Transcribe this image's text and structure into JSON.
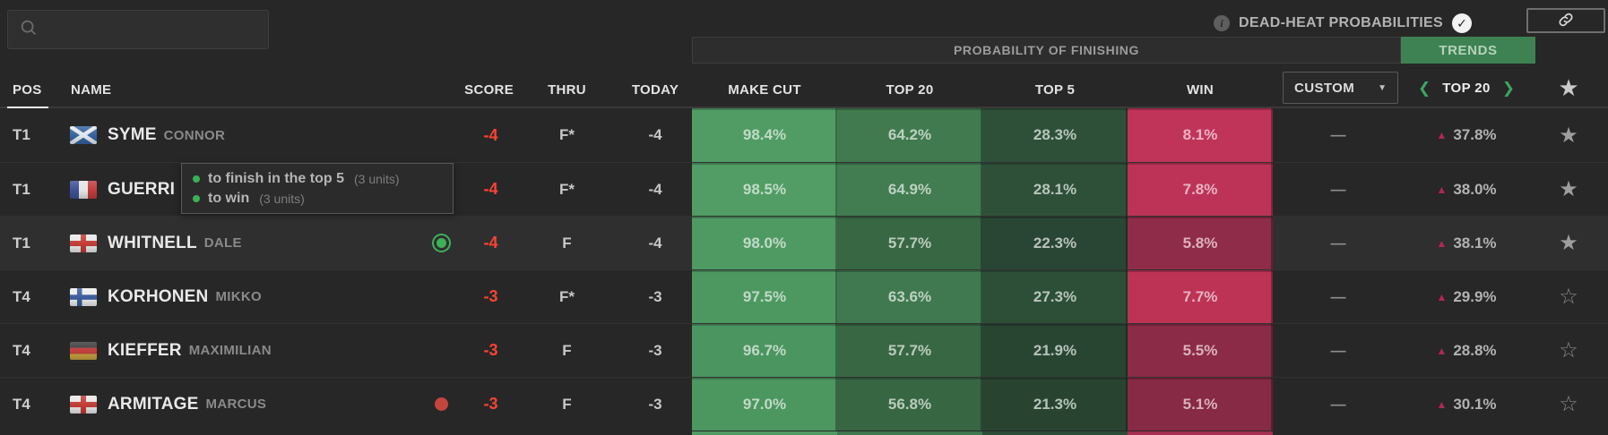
{
  "search": {
    "placeholder": ""
  },
  "topbar": {
    "info_icon": "i",
    "dead_heat_label": "DEAD-HEAT PROBABILITIES",
    "check_icon": "✓",
    "link_icon": "link-chain"
  },
  "prob_header": {
    "title": "PROBABILITY OF FINISHING",
    "trends_label": "TRENDS"
  },
  "columns": {
    "pos": "POS",
    "name": "NAME",
    "score": "SCORE",
    "thru": "THRU",
    "today": "TODAY",
    "make_cut": "MAKE CUT",
    "top20": "TOP 20",
    "top5": "TOP 5",
    "win": "WIN"
  },
  "custom_dropdown": {
    "value": "CUSTOM",
    "caret": "▼"
  },
  "trend_nav": {
    "prev": "❮",
    "label": "TOP 20",
    "next": "❯",
    "header_star": "★"
  },
  "tooltip": {
    "lines": [
      {
        "text": "to finish in the top 5",
        "units": "(3 units)"
      },
      {
        "text": "to win",
        "units": "(3 units)"
      }
    ]
  },
  "colors": {
    "trends_green": "#3e8253",
    "score_red": "#fb4334",
    "trend_triangle": "#b3255a",
    "indicator_green": "#3db158",
    "indicator_red": "#c4453c",
    "tooltip_dot_green": "#3cb054"
  },
  "players": [
    {
      "pos": "T1",
      "country": "sct",
      "last": "SYME",
      "first": "CONNOR",
      "indicator": null,
      "score": "-4",
      "thru": "F*",
      "today": "-4",
      "make_cut": {
        "v": "98.4%",
        "c": "#509c64"
      },
      "top20": {
        "v": "64.2%",
        "c": "#417a4f"
      },
      "top5": {
        "v": "28.3%",
        "c": "#2e5039"
      },
      "win": {
        "v": "8.1%",
        "c": "#c03459"
      },
      "custom": "—",
      "trend": "37.8%",
      "starred": true
    },
    {
      "pos": "T1",
      "country": "fra",
      "last": "GUERRI",
      "first": "",
      "indicator": null,
      "score": "-4",
      "thru": "F*",
      "today": "-4",
      "make_cut": {
        "v": "98.5%",
        "c": "#519d65"
      },
      "top20": {
        "v": "64.9%",
        "c": "#427c51"
      },
      "top5": {
        "v": "28.1%",
        "c": "#2e5039"
      },
      "win": {
        "v": "7.8%",
        "c": "#bd3357"
      },
      "custom": "—",
      "trend": "38.0%",
      "starred": true
    },
    {
      "pos": "T1",
      "country": "eng",
      "last": "WHITNELL",
      "first": "DALE",
      "indicator": "green-ring",
      "score": "-4",
      "thru": "F",
      "today": "-4",
      "make_cut": {
        "v": "98.0%",
        "c": "#4f9a63"
      },
      "top20": {
        "v": "57.7%",
        "c": "#386743"
      },
      "top5": {
        "v": "22.3%",
        "c": "#294634"
      },
      "win": {
        "v": "5.8%",
        "c": "#8f2c49"
      },
      "custom": "—",
      "trend": "38.1%",
      "starred": true,
      "highlight": true
    },
    {
      "pos": "T4",
      "country": "fin",
      "last": "KORHONEN",
      "first": "MIKKO",
      "indicator": null,
      "score": "-3",
      "thru": "F*",
      "today": "-3",
      "make_cut": {
        "v": "97.5%",
        "c": "#4d9861"
      },
      "top20": {
        "v": "63.6%",
        "c": "#40794f"
      },
      "top5": {
        "v": "27.3%",
        "c": "#2d4f38"
      },
      "win": {
        "v": "7.7%",
        "c": "#bc3356"
      },
      "custom": "—",
      "trend": "29.9%",
      "starred": false
    },
    {
      "pos": "T4",
      "country": "ger",
      "last": "KIEFFER",
      "first": "MAXIMILIAN",
      "indicator": null,
      "score": "-3",
      "thru": "F",
      "today": "-3",
      "make_cut": {
        "v": "96.7%",
        "c": "#4b9560"
      },
      "top20": {
        "v": "57.7%",
        "c": "#386743"
      },
      "top5": {
        "v": "21.9%",
        "c": "#284532"
      },
      "win": {
        "v": "5.5%",
        "c": "#8b2b47"
      },
      "custom": "—",
      "trend": "28.8%",
      "starred": false
    },
    {
      "pos": "T4",
      "country": "eng",
      "last": "ARMITAGE",
      "first": "MARCUS",
      "indicator": "red-dot",
      "score": "-3",
      "thru": "F",
      "today": "-3",
      "make_cut": {
        "v": "97.0%",
        "c": "#4c9660"
      },
      "top20": {
        "v": "56.8%",
        "c": "#376642"
      },
      "top5": {
        "v": "21.3%",
        "c": "#284431"
      },
      "win": {
        "v": "5.1%",
        "c": "#872a45"
      },
      "custom": "—",
      "trend": "30.1%",
      "starred": false
    }
  ],
  "partial_row": {
    "make_cut": "#4f9a63",
    "top20": "#3f774e",
    "top5": "#2c4d37",
    "win": "#a52f50"
  },
  "stars": {
    "filled": "★",
    "outline": "☆"
  }
}
